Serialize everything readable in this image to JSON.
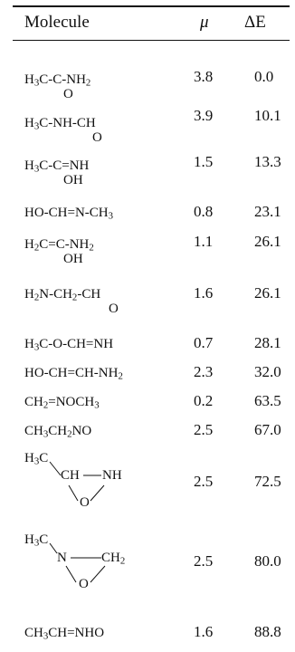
{
  "table": {
    "header": {
      "molecule": "Molecule",
      "mu": "μ",
      "delta_e": "ΔE"
    },
    "rows": [
      {
        "mu": "3.8",
        "delta_e": "0.0",
        "parts": {
          "a": "H",
          "b": "3",
          "c": "C-C-NH",
          "d": "2",
          "below": "O"
        }
      },
      {
        "mu": "3.9",
        "delta_e": "10.1",
        "parts": {
          "a": "H",
          "b": "3",
          "c": "C-NH-CH",
          "below": "O"
        }
      },
      {
        "mu": "1.5",
        "delta_e": "13.3",
        "parts": {
          "a": "H",
          "b": "3",
          "c": "C-C=NH",
          "below": "OH"
        }
      },
      {
        "mu": "0.8",
        "delta_e": "23.1",
        "parts": {
          "a": "HO-CH=N-CH",
          "b": "3"
        }
      },
      {
        "mu": "1.1",
        "delta_e": "26.1",
        "parts": {
          "a": "H",
          "b": "2",
          "c": "C=C-NH",
          "d": "2",
          "below": "OH"
        }
      },
      {
        "mu": "1.6",
        "delta_e": "26.1",
        "parts": {
          "a": "H",
          "b": "2",
          "c": "N-CH",
          "d": "2",
          "e": "-CH",
          "below": "O"
        }
      },
      {
        "mu": "0.7",
        "delta_e": "28.1",
        "parts": {
          "a": "H",
          "b": "3",
          "c": "C-O-CH=NH"
        }
      },
      {
        "mu": "2.3",
        "delta_e": "32.0",
        "parts": {
          "a": "HO-CH=CH-NH",
          "b": "2"
        }
      },
      {
        "mu": "0.2",
        "delta_e": "63.5",
        "parts": {
          "a": "CH",
          "b": "2",
          "c": "=NOCH",
          "d": "3"
        }
      },
      {
        "mu": "2.5",
        "delta_e": "67.0",
        "parts": {
          "a": "CH",
          "b": "3",
          "c": "CH",
          "d": "2",
          "e": "NO"
        }
      },
      {
        "mu": "2.5",
        "delta_e": "72.5",
        "parts": {
          "a": "H",
          "b": "3",
          "c": "C",
          "ring1": "CH",
          "ring2": "NH",
          "below": "O"
        }
      },
      {
        "mu": "2.5",
        "delta_e": "80.0",
        "parts": {
          "a": "H",
          "b": "3",
          "c": "C",
          "ring1": "N",
          "ring2": "CH",
          "d": "2",
          "below": "O"
        }
      },
      {
        "mu": "1.6",
        "delta_e": "88.8",
        "parts": {
          "a": "CH",
          "b": "3",
          "c": "CH=NHO"
        }
      }
    ]
  }
}
